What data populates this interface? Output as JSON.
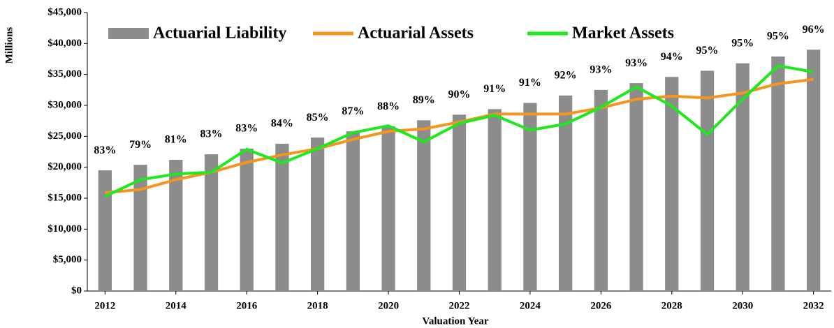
{
  "chart_data": {
    "type": "bar_line",
    "ylabel": "Millions",
    "xlabel": "Valuation Year",
    "x": [
      2012,
      2013,
      2014,
      2015,
      2016,
      2017,
      2018,
      2019,
      2020,
      2021,
      2022,
      2023,
      2024,
      2025,
      2026,
      2027,
      2028,
      2029,
      2030,
      2031,
      2032
    ],
    "xlim": [
      2011.5,
      2032.5
    ],
    "xticks": [
      2012,
      2014,
      2016,
      2018,
      2020,
      2022,
      2024,
      2026,
      2028,
      2030,
      2032
    ],
    "ylim": [
      0,
      45000
    ],
    "yticks": [
      {
        "value": 0,
        "label": "$0"
      },
      {
        "value": 5000,
        "label": "$5,000"
      },
      {
        "value": 10000,
        "label": "$10,000"
      },
      {
        "value": 15000,
        "label": "$15,000"
      },
      {
        "value": 20000,
        "label": "$20,000"
      },
      {
        "value": 25000,
        "label": "$25,000"
      },
      {
        "value": 30000,
        "label": "$30,000"
      },
      {
        "value": 35000,
        "label": "$35,000"
      },
      {
        "value": 40000,
        "label": "$40,000"
      },
      {
        "value": 45000,
        "label": "$45,000"
      }
    ],
    "series": [
      {
        "name": "Actuarial Liability",
        "kind": "bar",
        "color": "#8c8c8c",
        "values": [
          19500,
          20400,
          21200,
          22100,
          23000,
          23800,
          24800,
          25800,
          26600,
          27600,
          28500,
          29400,
          30400,
          31600,
          32500,
          33600,
          34600,
          35600,
          36800,
          37900,
          39000
        ]
      },
      {
        "name": "Actuarial Assets",
        "kind": "line",
        "color": "#f7941d",
        "values": [
          15900,
          16400,
          18000,
          19200,
          20800,
          22000,
          23000,
          24500,
          25800,
          26200,
          27300,
          28600,
          28600,
          28600,
          29600,
          31000,
          31500,
          31200,
          32000,
          33500,
          34200
        ]
      },
      {
        "name": "Market Assets",
        "kind": "line",
        "color": "#1ee81e",
        "values": [
          15300,
          18000,
          18900,
          19200,
          22900,
          20700,
          23000,
          25600,
          26700,
          24100,
          27100,
          28400,
          26000,
          27000,
          29700,
          33000,
          29900,
          25300,
          31000,
          36400,
          35400
        ]
      }
    ],
    "annotations": [
      "83%",
      "79%",
      "81%",
      "83%",
      "83%",
      "84%",
      "85%",
      "87%",
      "88%",
      "89%",
      "90%",
      "91%",
      "91%",
      "92%",
      "93%",
      "93%",
      "94%",
      "95%",
      "95%",
      "95%",
      "96%"
    ]
  }
}
